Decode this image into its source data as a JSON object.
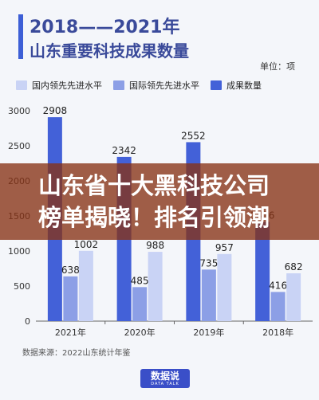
{
  "title": {
    "line1": "2018——2021年",
    "line2": "山东重要科技成果数量"
  },
  "unit_label": "单位：项",
  "source_label": "数据来源：2022山东统计年鉴",
  "logo": {
    "main": "数据说",
    "sub": "DATA TALK"
  },
  "overlay": {
    "line1": "山东省十大黑科技公司",
    "line2": "榜单揭晓！排名引领潮"
  },
  "colors": {
    "domestic": "#c9d3f5",
    "international": "#8c9fe6",
    "results": "#4361d8"
  },
  "chart_data": {
    "type": "bar",
    "categories": [
      "2021年",
      "2020年",
      "2019年",
      "2018年"
    ],
    "series": [
      {
        "name": "成果数量",
        "values": [
          2908,
          2342,
          2552,
          1416
        ]
      },
      {
        "name": "国际领先先进水平",
        "values": [
          638,
          485,
          735,
          416
        ]
      },
      {
        "name": "国内领先先进水平",
        "values": [
          1002,
          988,
          957,
          682
        ]
      }
    ],
    "ylim": [
      0,
      3000
    ],
    "yticks": [
      0,
      500,
      1000,
      1500,
      2000,
      2500,
      3000
    ],
    "legend": [
      "国内领先先进水平",
      "国际领先先进水平",
      "成果数量"
    ],
    "legend_position": "top",
    "grid": false
  }
}
